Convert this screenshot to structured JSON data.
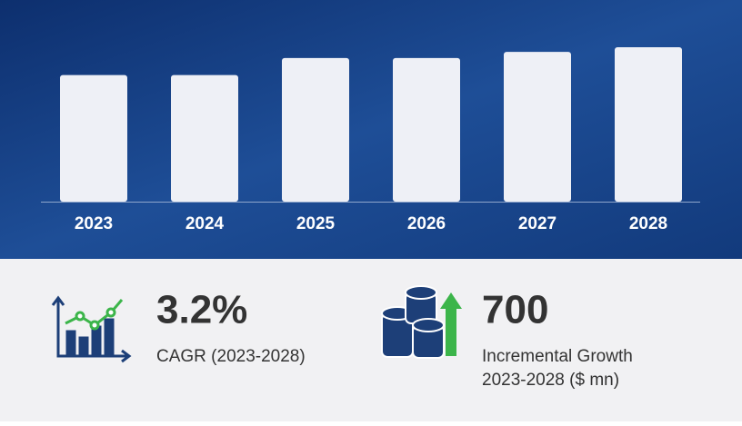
{
  "chart_data": {
    "type": "bar",
    "categories": [
      "2023",
      "2024",
      "2025",
      "2026",
      "2027",
      "2028"
    ],
    "values": [
      82,
      82,
      93,
      93,
      97,
      100
    ],
    "color": "#eef0f6"
  },
  "kpis": [
    {
      "value": "3.2%",
      "label": "CAGR (2023-2028)"
    },
    {
      "value": "700",
      "label": "Incremental Growth",
      "sublabel": "2023-2028 ($ mn)"
    }
  ]
}
